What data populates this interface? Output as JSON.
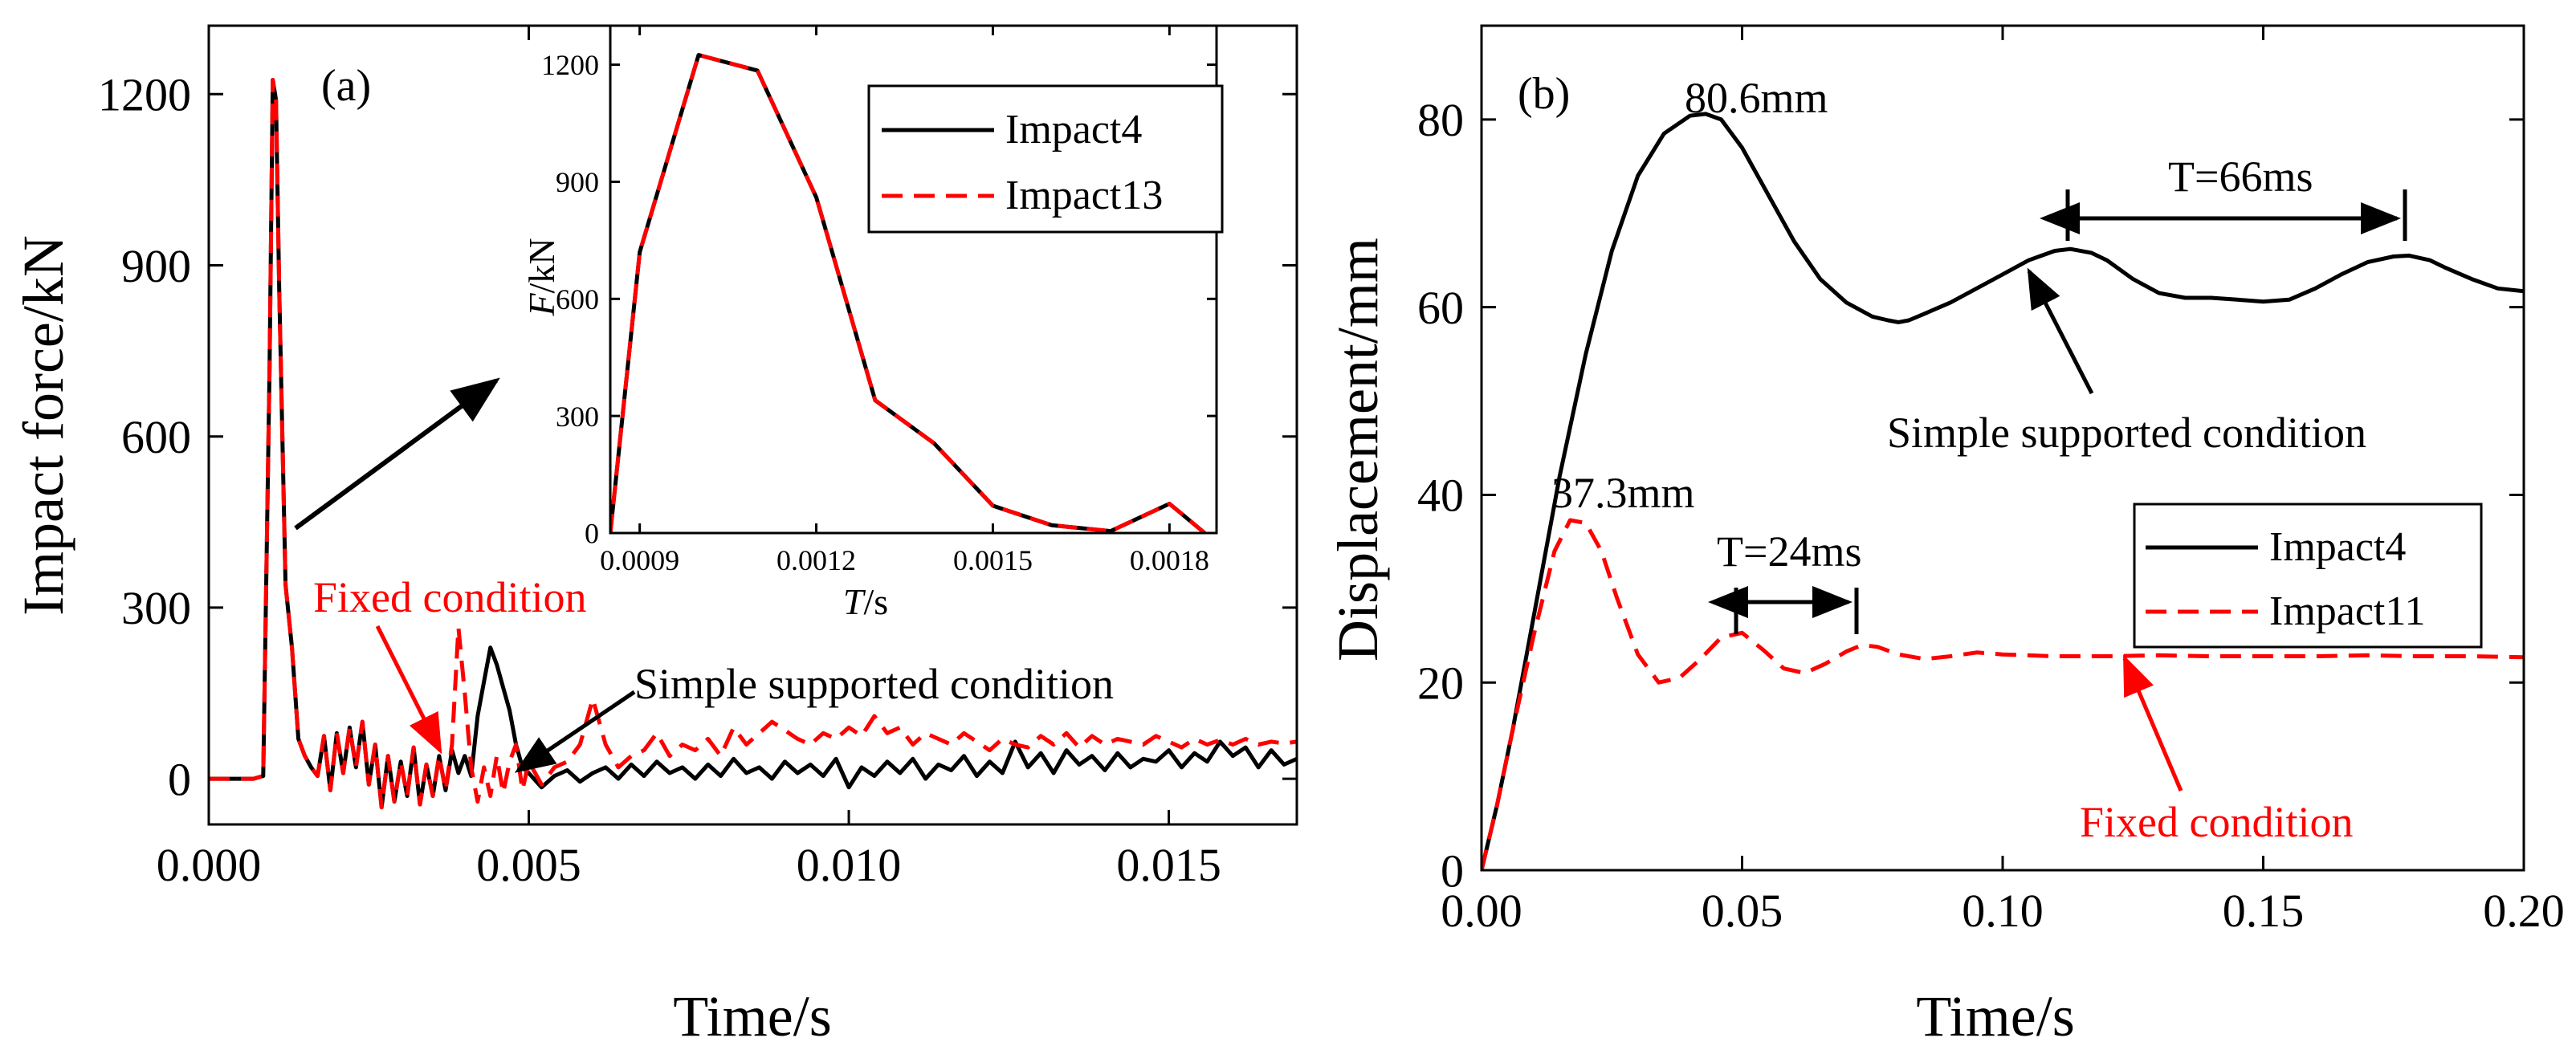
{
  "colors": {
    "black": "#000000",
    "red": "#ff0000"
  },
  "chart_data": [
    {
      "id": "a",
      "type": "line",
      "panel_label": "(a)",
      "xlabel": "Time/s",
      "ylabel": "Impact force/kN",
      "xlim": [
        0,
        0.017
      ],
      "ylim": [
        -80,
        1320
      ],
      "xticks": [
        0.0,
        0.005,
        0.01,
        0.015
      ],
      "xtick_labels": [
        "0.000",
        "0.005",
        "0.010",
        "0.015"
      ],
      "yticks": [
        0,
        300,
        600,
        900,
        1200
      ],
      "ytick_labels": [
        "0",
        "300",
        "600",
        "900",
        "1200"
      ],
      "series": [
        {
          "name": "Impact4",
          "color": "#000000",
          "dash": "solid",
          "x": [
            0,
            0.0007,
            0.00085,
            0.00095,
            0.001,
            0.00105,
            0.0011,
            0.0012,
            0.0013,
            0.0014,
            0.0015,
            0.0016,
            0.0017,
            0.0018,
            0.0019,
            0.002,
            0.0021,
            0.0022,
            0.0023,
            0.0024,
            0.0025,
            0.0026,
            0.0027,
            0.0028,
            0.0029,
            0.003,
            0.0031,
            0.0032,
            0.0033,
            0.0034,
            0.0035,
            0.0036,
            0.0037,
            0.0038,
            0.0039,
            0.004,
            0.0041,
            0.0042,
            0.0043,
            0.0044,
            0.0045,
            0.0046,
            0.0047,
            0.0048,
            0.0049,
            0.005,
            0.0052,
            0.0054,
            0.0056,
            0.0058,
            0.006,
            0.0062,
            0.0064,
            0.0066,
            0.0068,
            0.007,
            0.0072,
            0.0074,
            0.0076,
            0.0078,
            0.008,
            0.0082,
            0.0084,
            0.0086,
            0.0088,
            0.009,
            0.0092,
            0.0094,
            0.0096,
            0.0098,
            0.01,
            0.0102,
            0.0104,
            0.0106,
            0.0108,
            0.011,
            0.0112,
            0.0114,
            0.0116,
            0.0118,
            0.012,
            0.0122,
            0.0124,
            0.0126,
            0.0128,
            0.013,
            0.0132,
            0.0134,
            0.0136,
            0.0138,
            0.014,
            0.0142,
            0.0144,
            0.0146,
            0.0148,
            0.015,
            0.0152,
            0.0154,
            0.0156,
            0.0158,
            0.016,
            0.0162,
            0.0164,
            0.0166,
            0.0168,
            0.017
          ],
          "y": [
            0,
            0,
            5,
            720,
            1225,
            1190,
            860,
            340,
            230,
            70,
            40,
            20,
            5,
            75,
            -20,
            80,
            10,
            90,
            20,
            100,
            -10,
            60,
            -50,
            40,
            -40,
            30,
            -30,
            55,
            -45,
            25,
            -30,
            40,
            -20,
            50,
            10,
            40,
            5,
            110,
            170,
            230,
            200,
            160,
            120,
            60,
            20,
            10,
            -15,
            5,
            15,
            -5,
            10,
            20,
            0,
            25,
            5,
            30,
            10,
            20,
            0,
            25,
            5,
            35,
            10,
            20,
            0,
            30,
            10,
            25,
            5,
            35,
            -15,
            20,
            5,
            30,
            10,
            35,
            0,
            25,
            15,
            40,
            5,
            30,
            10,
            65,
            20,
            45,
            10,
            50,
            25,
            40,
            15,
            45,
            20,
            35,
            30,
            50,
            20,
            45,
            30,
            65,
            40,
            55,
            20,
            50,
            25,
            35
          ]
        },
        {
          "name": "Impact13",
          "color": "#ff0000",
          "dash": "dashed",
          "x": [
            0,
            0.0007,
            0.00085,
            0.00095,
            0.001,
            0.00105,
            0.0011,
            0.0012,
            0.0013,
            0.0014,
            0.0015,
            0.0016,
            0.0017,
            0.0018,
            0.0019,
            0.002,
            0.0021,
            0.0022,
            0.0023,
            0.0024,
            0.0025,
            0.0026,
            0.0027,
            0.0028,
            0.0029,
            0.003,
            0.0031,
            0.0032,
            0.0033,
            0.0034,
            0.0035,
            0.0036,
            0.0037,
            0.0038,
            0.0039,
            0.004,
            0.0041,
            0.0042,
            0.0043,
            0.0044,
            0.0045,
            0.0046,
            0.0047,
            0.0048,
            0.0049,
            0.005,
            0.0052,
            0.0054,
            0.0056,
            0.0058,
            0.006,
            0.0062,
            0.0064,
            0.0066,
            0.0068,
            0.007,
            0.0072,
            0.0074,
            0.0076,
            0.0078,
            0.008,
            0.0082,
            0.0084,
            0.0086,
            0.0088,
            0.009,
            0.0092,
            0.0094,
            0.0096,
            0.0098,
            0.01,
            0.0102,
            0.0104,
            0.0106,
            0.0108,
            0.011,
            0.0112,
            0.0114,
            0.0116,
            0.0118,
            0.012,
            0.0122,
            0.0124,
            0.0126,
            0.0128,
            0.013,
            0.0132,
            0.0134,
            0.0136,
            0.0138,
            0.014,
            0.0142,
            0.0144,
            0.0146,
            0.0148,
            0.015,
            0.0152,
            0.0154,
            0.0156,
            0.0158,
            0.016,
            0.0162,
            0.0164,
            0.0166,
            0.0168,
            0.017
          ],
          "y": [
            0,
            0,
            5,
            720,
            1225,
            1190,
            860,
            340,
            230,
            70,
            40,
            20,
            5,
            75,
            -20,
            80,
            10,
            90,
            20,
            100,
            -10,
            60,
            -50,
            40,
            -40,
            30,
            -30,
            55,
            -45,
            25,
            -30,
            40,
            -20,
            60,
            265,
            150,
            20,
            -40,
            20,
            -30,
            40,
            -25,
            30,
            60,
            -20,
            30,
            -10,
            20,
            30,
            60,
            140,
            60,
            20,
            40,
            50,
            80,
            40,
            60,
            50,
            70,
            40,
            90,
            60,
            80,
            100,
            85,
            70,
            60,
            80,
            70,
            90,
            75,
            110,
            80,
            90,
            60,
            80,
            70,
            60,
            80,
            65,
            50,
            70,
            60,
            55,
            75,
            60,
            80,
            55,
            75,
            60,
            70,
            65,
            60,
            75,
            65,
            55,
            70,
            60,
            68,
            60,
            70,
            60,
            65,
            62,
            65
          ]
        }
      ],
      "annotations": {
        "fixed": "Fixed condition",
        "simple": "Simple supported condition"
      },
      "inset": {
        "type": "line",
        "xlabel_italic": "T",
        "xlabel_rest": "/s",
        "ylabel_italic": "F",
        "ylabel_rest": "/kN",
        "xlim": [
          0.00085,
          0.00188
        ],
        "ylim": [
          0,
          1300
        ],
        "xticks": [
          0.0009,
          0.0012,
          0.0015,
          0.0018
        ],
        "xtick_labels": [
          "0.0009",
          "0.0012",
          "0.0015",
          "0.0018"
        ],
        "yticks": [
          0,
          300,
          600,
          900,
          1200
        ],
        "ytick_labels": [
          "0",
          "300",
          "600",
          "900",
          "1200"
        ],
        "series": [
          {
            "name": "Impact4",
            "color": "#000000",
            "dash": "solid",
            "x": [
              0.00085,
              0.0009,
              0.001,
              0.0011,
              0.0012,
              0.0013,
              0.0014,
              0.0015,
              0.0016,
              0.0017,
              0.0018,
              0.00186
            ],
            "y": [
              0,
              720,
              1225,
              1185,
              860,
              340,
              230,
              70,
              20,
              5,
              75,
              0
            ]
          },
          {
            "name": "Impact13",
            "color": "#ff0000",
            "dash": "dashed",
            "x": [
              0.00085,
              0.0009,
              0.001,
              0.0011,
              0.0012,
              0.0013,
              0.0014,
              0.0015,
              0.0016,
              0.0017,
              0.0018,
              0.00186
            ],
            "y": [
              0,
              720,
              1225,
              1185,
              860,
              340,
              230,
              70,
              20,
              5,
              75,
              0
            ]
          }
        ],
        "legend": [
          "Impact4",
          "Impact13"
        ]
      }
    },
    {
      "id": "b",
      "type": "line",
      "panel_label": "(b)",
      "xlabel": "Time/s",
      "ylabel": "Displacement/mm",
      "xlim": [
        0,
        0.2
      ],
      "ylim": [
        0,
        90
      ],
      "xticks": [
        0.0,
        0.05,
        0.1,
        0.15,
        0.2
      ],
      "xtick_labels": [
        "0.00",
        "0.05",
        "0.10",
        "0.15",
        "0.20"
      ],
      "yticks": [
        0,
        20,
        40,
        60,
        80
      ],
      "ytick_labels": [
        "0",
        "20",
        "40",
        "60",
        "80"
      ],
      "series": [
        {
          "name": "Impact4",
          "color": "#000000",
          "dash": "solid",
          "x": [
            0,
            0.003,
            0.006,
            0.01,
            0.015,
            0.02,
            0.025,
            0.03,
            0.035,
            0.04,
            0.043,
            0.046,
            0.05,
            0.055,
            0.06,
            0.065,
            0.07,
            0.075,
            0.078,
            0.08,
            0.082,
            0.085,
            0.09,
            0.095,
            0.1,
            0.105,
            0.11,
            0.113,
            0.117,
            0.12,
            0.125,
            0.13,
            0.135,
            0.14,
            0.145,
            0.15,
            0.155,
            0.16,
            0.165,
            0.17,
            0.175,
            0.178,
            0.182,
            0.185,
            0.19,
            0.195,
            0.2
          ],
          "y": [
            0,
            7,
            15,
            27,
            42,
            55,
            66,
            74,
            78.5,
            80.4,
            80.6,
            80,
            77,
            72,
            67,
            63,
            60.5,
            59,
            58.6,
            58.4,
            58.6,
            59.3,
            60.5,
            62,
            63.5,
            65,
            66,
            66.2,
            65.8,
            65,
            63,
            61.5,
            61,
            61,
            60.8,
            60.6,
            60.8,
            62,
            63.5,
            64.8,
            65.4,
            65.5,
            65,
            64.2,
            63,
            62,
            61.7
          ]
        },
        {
          "name": "Impact11",
          "color": "#ff0000",
          "dash": "dashed",
          "x": [
            0,
            0.003,
            0.006,
            0.01,
            0.014,
            0.017,
            0.02,
            0.023,
            0.026,
            0.03,
            0.034,
            0.038,
            0.042,
            0.046,
            0.05,
            0.054,
            0.058,
            0.062,
            0.066,
            0.07,
            0.073,
            0.076,
            0.08,
            0.085,
            0.09,
            0.095,
            0.1,
            0.11,
            0.12,
            0.13,
            0.14,
            0.15,
            0.16,
            0.17,
            0.18,
            0.19,
            0.2
          ],
          "y": [
            0,
            7,
            15,
            25,
            34,
            37.3,
            37,
            34,
            29,
            23,
            20,
            20.5,
            22.5,
            24.8,
            25.3,
            23.5,
            21.5,
            21,
            22,
            23.3,
            24,
            23.8,
            23,
            22.5,
            22.8,
            23.2,
            23,
            22.8,
            22.8,
            22.9,
            22.8,
            22.8,
            22.8,
            22.9,
            22.8,
            22.8,
            22.7
          ]
        }
      ],
      "legend": [
        "Impact4",
        "Impact11"
      ],
      "annotations": {
        "peak4": "80.6mm",
        "peak11": "37.3mm",
        "period4": "T=66ms",
        "period11": "T=24ms",
        "simple": "Simple supported condition",
        "fixed": "Fixed condition"
      }
    }
  ]
}
